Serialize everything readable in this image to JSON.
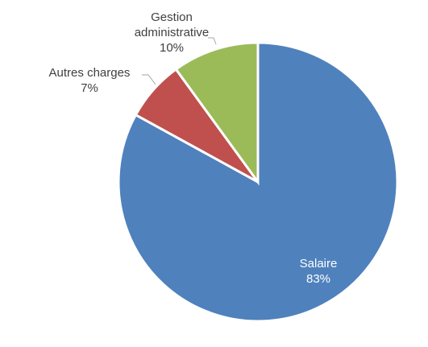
{
  "chart_data": {
    "type": "pie",
    "title": "",
    "slices": [
      {
        "name": "Salaire",
        "value": 83,
        "label": "83%",
        "color": "#4f81bd"
      },
      {
        "name": "Autres charges",
        "value": 7,
        "label": "7%",
        "color": "#c0504d"
      },
      {
        "name": "Gestion administrative",
        "value": 10,
        "label": "10%",
        "color": "#9bbb59"
      }
    ],
    "start_angle": "12 o'clock",
    "direction": "clockwise",
    "legend": "none",
    "labels": {
      "gestion": {
        "line1": "Gestion",
        "line2": "administrative",
        "pct": "10%"
      },
      "autres": {
        "line1": "Autres charges",
        "pct": "7%"
      },
      "salaire": {
        "line1": "Salaire",
        "pct": "83%"
      }
    }
  }
}
